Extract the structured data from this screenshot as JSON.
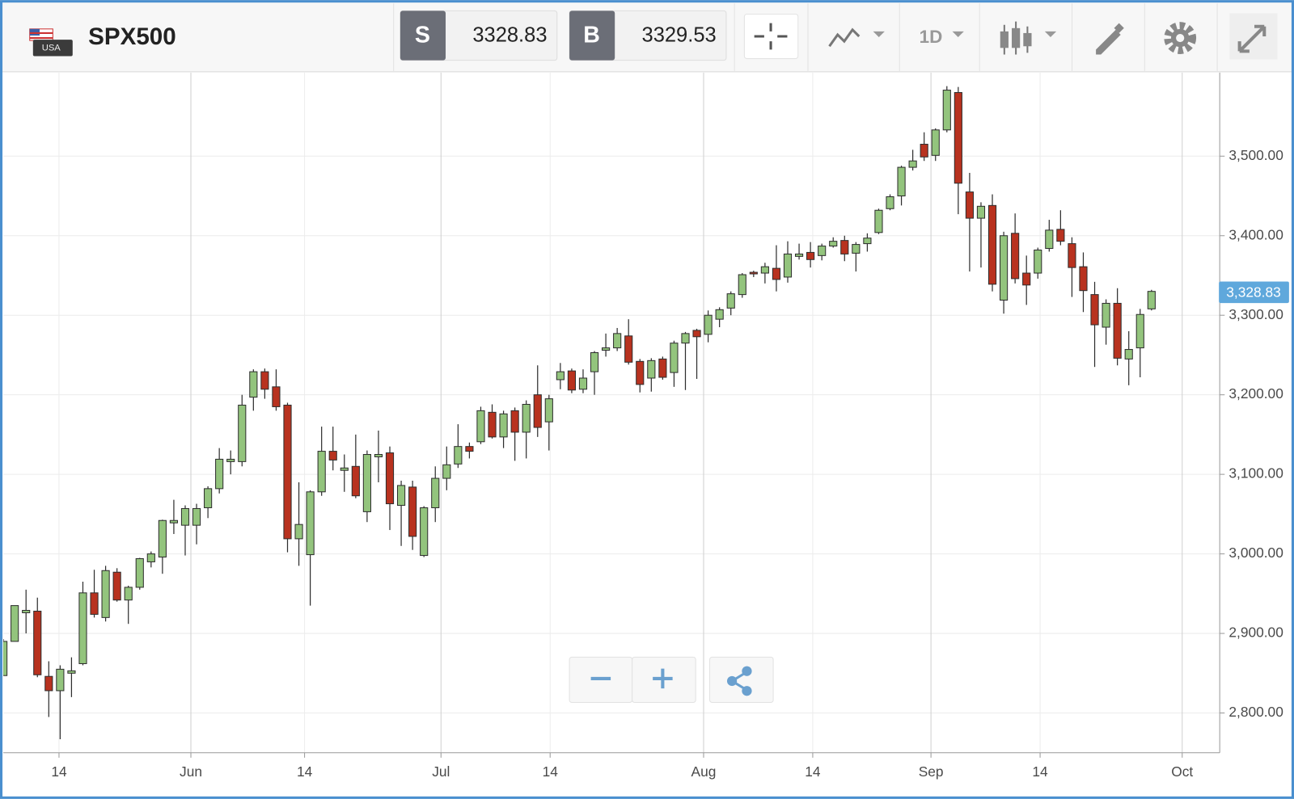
{
  "toolbar": {
    "flag_label": "USA",
    "symbol": "SPX500",
    "sell_label": "S",
    "sell_price": 3328.83,
    "buy_label": "B",
    "buy_price": 3329.53,
    "timeframe": "1D"
  },
  "chart_data": {
    "type": "candlestick",
    "open": [
      2847,
      2890,
      2926,
      2928,
      2846,
      2828,
      2850,
      2862,
      2951,
      2920,
      2977,
      2942,
      2958,
      2990,
      2996,
      3039,
      3036,
      3036,
      3058,
      3082,
      3116,
      3116,
      3197,
      3229,
      3210,
      3187,
      3019,
      2999,
      3078,
      3129,
      3105,
      3110,
      3053,
      3122,
      3127,
      3061,
      3084,
      2998,
      3058,
      3095,
      3113,
      3135,
      3141,
      3178,
      3147,
      3180,
      3153,
      3200,
      3166,
      3219,
      3230,
      3207,
      3229,
      3256,
      3259,
      3274,
      3242,
      3221,
      3245,
      3228,
      3265,
      3281,
      3276,
      3295,
      3309,
      3326,
      3354,
      3353,
      3359,
      3348,
      3374,
      3379,
      3375,
      3387,
      3394,
      3378,
      3390,
      3404,
      3434,
      3450,
      3486,
      3515,
      3501,
      3533,
      3580,
      3455,
      3422,
      3438,
      3319,
      3403,
      3353,
      3353,
      3384,
      3408,
      3390,
      3361,
      3326,
      3285,
      3315,
      3245,
      3259,
      3308
    ],
    "high": [
      2893,
      2935,
      2955,
      2945,
      2865,
      2860,
      2870,
      2965,
      2980,
      2985,
      2982,
      2960,
      2995,
      3003,
      3043,
      3068,
      3061,
      3063,
      3085,
      3133,
      3130,
      3200,
      3232,
      3233,
      3232,
      3190,
      3090,
      3080,
      3160,
      3160,
      3125,
      3150,
      3130,
      3155,
      3135,
      3092,
      3092,
      3060,
      3110,
      3135,
      3163,
      3140,
      3185,
      3188,
      3180,
      3184,
      3193,
      3237,
      3200,
      3240,
      3233,
      3232,
      3255,
      3277,
      3284,
      3295,
      3245,
      3246,
      3248,
      3268,
      3279,
      3283,
      3306,
      3310,
      3330,
      3353,
      3356,
      3366,
      3388,
      3393,
      3390,
      3392,
      3390,
      3398,
      3400,
      3392,
      3403,
      3434,
      3452,
      3488,
      3508,
      3530,
      3535,
      3588,
      3587,
      3479,
      3442,
      3452,
      3405,
      3428,
      3375,
      3385,
      3420,
      3432,
      3398,
      3379,
      3342,
      3320,
      3334,
      3280,
      3308,
      3332
    ],
    "low": [
      2847,
      2890,
      2900,
      2845,
      2795,
      2767,
      2820,
      2860,
      2920,
      2915,
      2940,
      2912,
      2955,
      2983,
      2975,
      3025,
      2998,
      3012,
      3045,
      3076,
      3100,
      3110,
      3180,
      3195,
      3180,
      3002,
      2985,
      2935,
      3073,
      3105,
      3078,
      3070,
      3040,
      3090,
      3030,
      3010,
      3005,
      2996,
      3040,
      3080,
      3108,
      3120,
      3138,
      3145,
      3133,
      3117,
      3120,
      3147,
      3130,
      3207,
      3202,
      3202,
      3200,
      3248,
      3255,
      3238,
      3203,
      3204,
      3219,
      3210,
      3206,
      3220,
      3266,
      3285,
      3300,
      3322,
      3348,
      3340,
      3330,
      3341,
      3370,
      3360,
      3369,
      3385,
      3368,
      3355,
      3380,
      3402,
      3432,
      3438,
      3482,
      3494,
      3494,
      3530,
      3427,
      3355,
      3360,
      3330,
      3302,
      3340,
      3313,
      3346,
      3380,
      3388,
      3323,
      3304,
      3235,
      3263,
      3237,
      3212,
      3222,
      3306
    ],
    "close": [
      2890,
      2935,
      2929,
      2848,
      2828,
      2855,
      2853,
      2951,
      2924,
      2979,
      2942,
      2958,
      2994,
      3000,
      3042,
      3042,
      3057,
      3057,
      3082,
      3119,
      3119,
      3187,
      3229,
      3207,
      3185,
      3019,
      3037,
      3078,
      3129,
      3118,
      3108,
      3073,
      3125,
      3125,
      3063,
      3086,
      3022,
      3058,
      3095,
      3112,
      3135,
      3129,
      3180,
      3147,
      3176,
      3153,
      3188,
      3159,
      3195,
      3229,
      3206,
      3221,
      3253,
      3259,
      3277,
      3241,
      3213,
      3243,
      3222,
      3265,
      3277,
      3273,
      3300,
      3307,
      3327,
      3351,
      3352,
      3361,
      3345,
      3377,
      3377,
      3370,
      3387,
      3393,
      3377,
      3389,
      3397,
      3432,
      3449,
      3486,
      3494,
      3499,
      3533,
      3583,
      3466,
      3422,
      3437,
      3339,
      3400,
      3346,
      3338,
      3382,
      3407,
      3393,
      3360,
      3331,
      3288,
      3315,
      3246,
      3257,
      3301,
      3330
    ],
    "up_color": "#93c47d",
    "down_color": "#b8321f",
    "xlim": [
      0,
      107
    ],
    "xticks": [
      {
        "value": 4.9,
        "label": "14"
      },
      {
        "value": 16.5,
        "label": "Jun"
      },
      {
        "value": 26.5,
        "label": "14"
      },
      {
        "value": 38.5,
        "label": "Jul"
      },
      {
        "value": 48.1,
        "label": "14"
      },
      {
        "value": 61.6,
        "label": "Aug"
      },
      {
        "value": 71.2,
        "label": "14"
      },
      {
        "value": 81.6,
        "label": "Sep"
      },
      {
        "value": 91.2,
        "label": "14"
      },
      {
        "value": 103.7,
        "label": "Oct"
      }
    ],
    "ylim": [
      2750,
      3605
    ],
    "yticks": [
      {
        "value": 2800,
        "label": "2,800.00"
      },
      {
        "value": 2900,
        "label": "2,900.00"
      },
      {
        "value": 3000,
        "label": "3,000.00"
      },
      {
        "value": 3100,
        "label": "3,100.00"
      },
      {
        "value": 3200,
        "label": "3,200.00"
      },
      {
        "value": 3300,
        "label": "3,300.00"
      },
      {
        "value": 3400,
        "label": "3,400.00"
      },
      {
        "value": 3500,
        "label": "3,500.00"
      }
    ],
    "last_price": {
      "value": 3328.83,
      "label": "3,328.83"
    },
    "grid": true
  }
}
